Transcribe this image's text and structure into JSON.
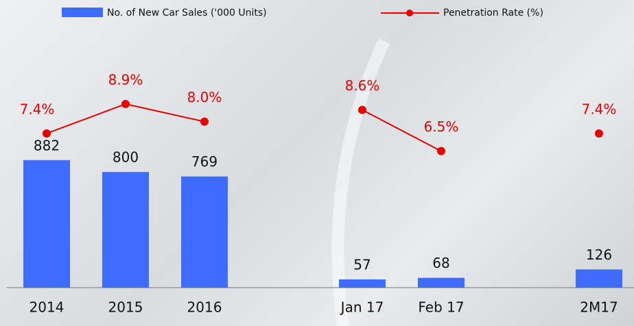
{
  "chart_data": {
    "type": "bar-line",
    "categories": [
      "2014",
      "2015",
      "2016",
      null,
      "Jan 17",
      "Feb 17",
      null,
      "2M17"
    ],
    "series": [
      {
        "name": "No. of New Car Sales ('000 Units)",
        "type": "bar",
        "color": "#3f6cfc",
        "values": [
          882,
          800,
          769,
          null,
          57,
          68,
          null,
          126
        ]
      },
      {
        "name": "Penetration Rate (%)",
        "type": "line",
        "axis": "y2",
        "color": "#e60000",
        "values": [
          7.4,
          8.9,
          8.0,
          null,
          8.6,
          6.5,
          null,
          7.4
        ],
        "value_labels": [
          "7.4%",
          "8.9%",
          "8.0%",
          null,
          "8.6%",
          "6.5%",
          null,
          "7.4%"
        ]
      }
    ],
    "ylim": [
      0,
      1800
    ],
    "y2lim": [
      -0.45,
      12.8
    ],
    "legend": "top"
  }
}
